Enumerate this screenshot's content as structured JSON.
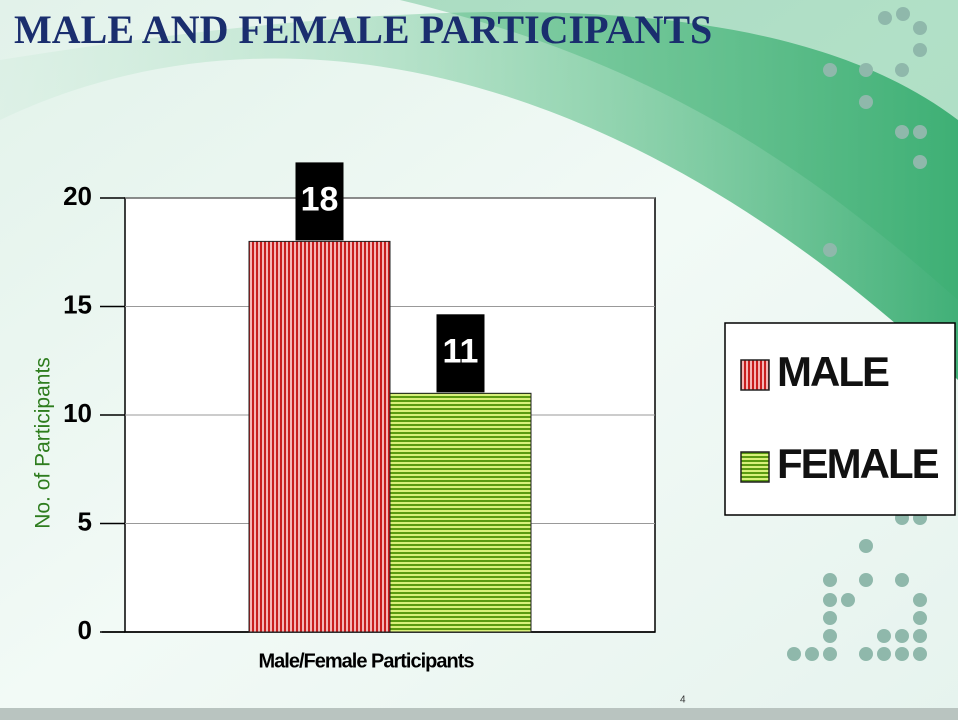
{
  "chart_data": {
    "type": "bar",
    "title": "MALE AND FEMALE PARTICIPANTS",
    "y_label": "No. of Participants",
    "x_label": "Male/Female Participants",
    "categories": [
      null
    ],
    "series": [
      {
        "name": "MALE",
        "color": "#d42a2a",
        "values": [
          18
        ]
      },
      {
        "name": "FEMALE",
        "color": "#8ccc1e",
        "values": [
          11
        ]
      }
    ],
    "ylim": [
      0,
      20
    ],
    "yticks": [
      0,
      5,
      10,
      15,
      20
    ],
    "grid": true,
    "legend": "right"
  },
  "slide_number": "4"
}
